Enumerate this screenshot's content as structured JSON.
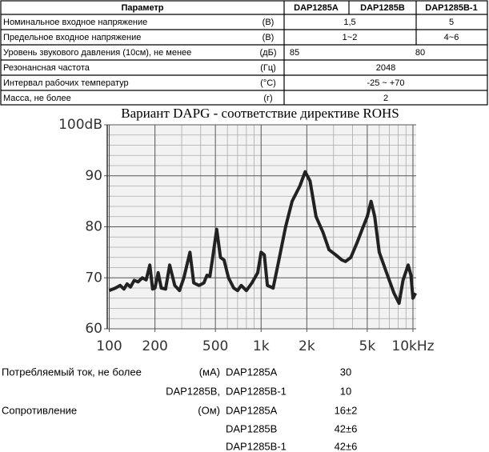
{
  "table": {
    "header": [
      "Параметр",
      "DAP1285A",
      "DAP1285B",
      "DAP1285B-1"
    ],
    "rows": [
      [
        "Номинальное входное напряжение",
        "(В)",
        "1,5",
        "5"
      ],
      [
        "Предельное входное напряжение",
        "(В)",
        "1~2",
        "4~6"
      ],
      [
        "Уровень звукового давления (10см), не менее",
        "(дБ)",
        "85",
        "80"
      ],
      [
        "Резонансная частота",
        "(Гц)",
        "2048"
      ],
      [
        "Интервал рабочих температур",
        "(°C)",
        "-25 ~ +70"
      ],
      [
        "Масса, не более",
        "(г)",
        "2"
      ]
    ]
  },
  "chart_data": {
    "type": "line",
    "title": "Вариант DAPG - соответствие директиве ROHS",
    "x_log": true,
    "grid": true,
    "color": "#222222",
    "xlim": [
      97,
      10500
    ],
    "ylim": [
      60,
      100
    ],
    "xticks": [
      100,
      200,
      500,
      {
        "value": 1000,
        "label": "1k"
      },
      {
        "value": 2000,
        "label": "2k"
      },
      {
        "value": 5000,
        "label": "5k"
      },
      {
        "value": 10000,
        "label": "10kHz"
      }
    ],
    "yticks": [
      60,
      70,
      80,
      90,
      {
        "value": 100,
        "label": "100dB"
      }
    ],
    "x_minor_grid": [
      300,
      400,
      600,
      700,
      800,
      900,
      3000,
      4000,
      6000,
      7000,
      8000,
      9000
    ],
    "y_minor_grid": [
      62,
      64,
      66,
      68,
      72,
      74,
      76,
      78,
      82,
      84,
      86,
      88,
      92,
      94,
      96,
      98
    ],
    "x": [
      100,
      110,
      118,
      125,
      131,
      138,
      146,
      155,
      165,
      175,
      185,
      193,
      200,
      210,
      220,
      235,
      250,
      270,
      290,
      310,
      340,
      360,
      390,
      420,
      440,
      460,
      480,
      510,
      540,
      570,
      610,
      660,
      700,
      740,
      800,
      870,
      950,
      1000,
      1050,
      1100,
      1200,
      1300,
      1450,
      1600,
      1800,
      1950,
      2100,
      2300,
      2550,
      2800,
      3100,
      3400,
      3600,
      3900,
      4300,
      4700,
      5000,
      5300,
      5600,
      6000,
      6700,
      7500,
      8100,
      8600,
      9300,
      9700,
      10000,
      10400
    ],
    "values": [
      67.5,
      68,
      68.5,
      67.8,
      68.8,
      68.2,
      69.5,
      69.2,
      70,
      69.6,
      72.5,
      67.8,
      68,
      71,
      68,
      67.8,
      72.5,
      68.5,
      67.5,
      70,
      75,
      69,
      68.5,
      69,
      70.5,
      70.3,
      74,
      79.5,
      74,
      73.5,
      70,
      68,
      67.5,
      68.5,
      67.5,
      69,
      71,
      75,
      74.5,
      68.5,
      68,
      73,
      80,
      85,
      88,
      90.8,
      89,
      82,
      79,
      75.5,
      74.5,
      73.5,
      73.2,
      74,
      77,
      80,
      82,
      85,
      82,
      75,
      71,
      67,
      65,
      69.5,
      72.5,
      70.5,
      66,
      67
    ]
  },
  "specs": {
    "rows": [
      [
        "Потребляемый ток, не более",
        "(мА)",
        "DAP1285A",
        "30"
      ],
      [
        "DAP1285B,",
        "DAP1285B-1",
        "10"
      ],
      [
        "Сопротивление",
        "(Ом)",
        "DAP1285A",
        "16±2"
      ],
      [
        "DAP1285B",
        "42±6"
      ],
      [
        "DAP1285B-1",
        "42±6"
      ]
    ]
  }
}
